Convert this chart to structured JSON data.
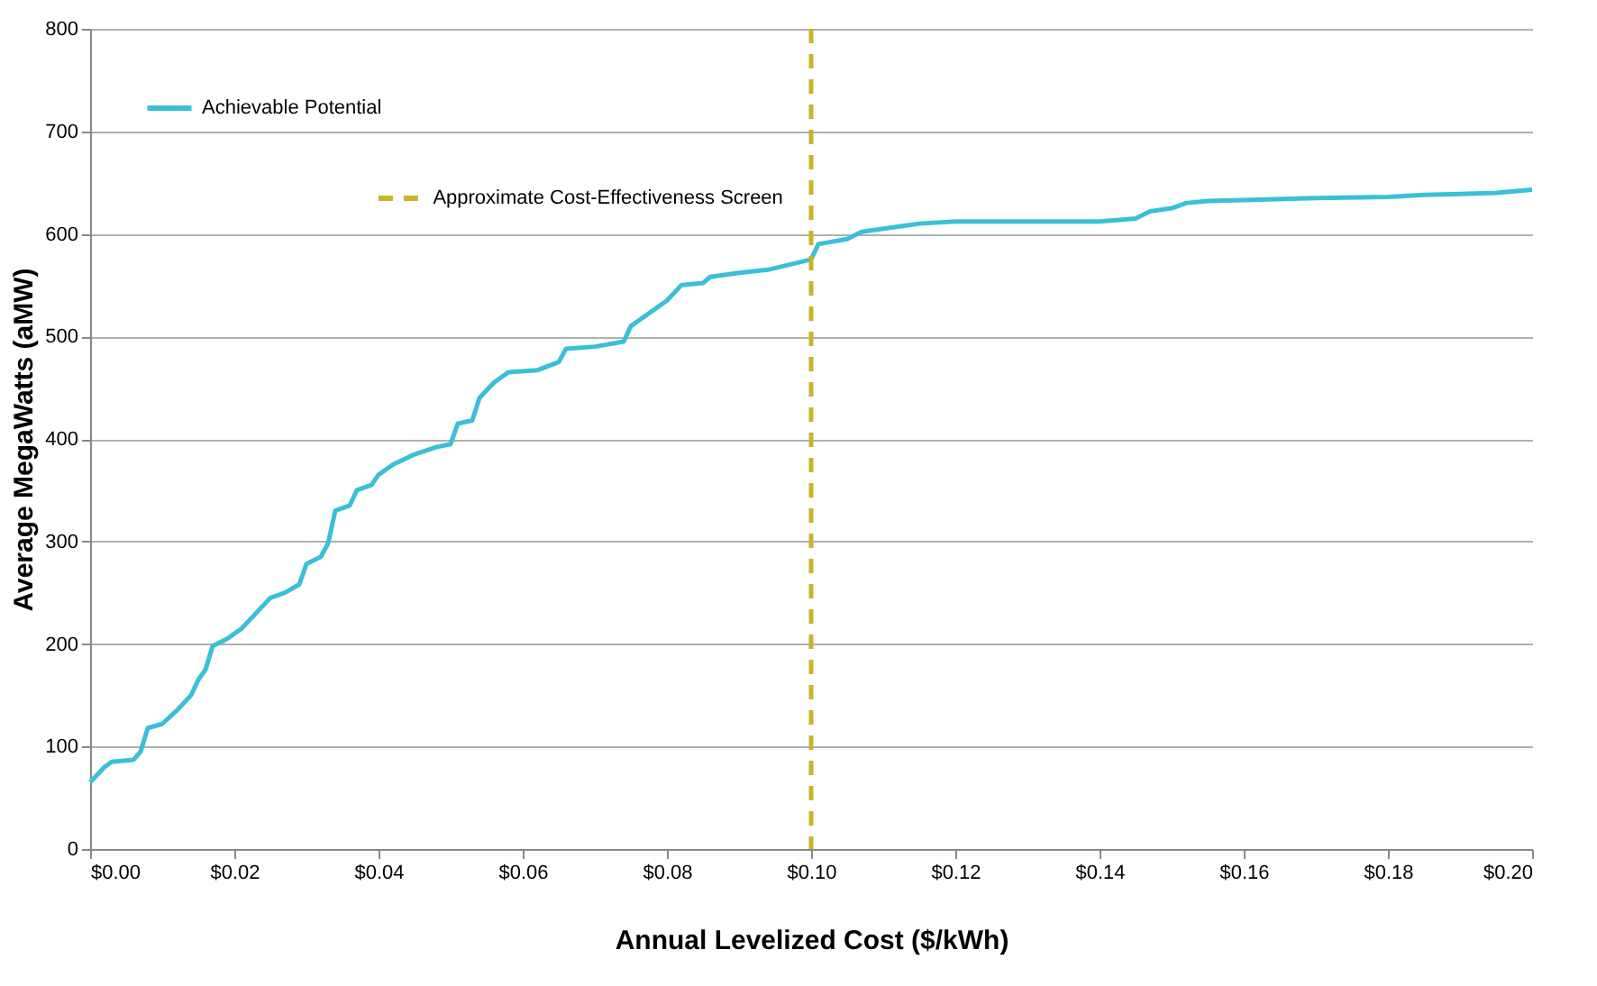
{
  "chart_data": {
    "type": "line",
    "xlabel": "Annual Levelized Cost ($/kWh)",
    "ylabel": "Average MegaWatts (aMW)",
    "xlim": [
      0,
      0.2
    ],
    "ylim": [
      0,
      800
    ],
    "xticks": [
      {
        "value": 0,
        "label": "$0.00"
      },
      {
        "value": 0.02,
        "label": "$0.02"
      },
      {
        "value": 0.04,
        "label": "$0.04"
      },
      {
        "value": 0.06,
        "label": "$0.06"
      },
      {
        "value": 0.08,
        "label": "$0.08"
      },
      {
        "value": 0.1,
        "label": "$0.10"
      },
      {
        "value": 0.12,
        "label": "$0.12"
      },
      {
        "value": 0.14,
        "label": "$0.14"
      },
      {
        "value": 0.16,
        "label": "$0.16"
      },
      {
        "value": 0.18,
        "label": "$0.18"
      },
      {
        "value": 0.2,
        "label": "$0.20"
      }
    ],
    "yticks": [
      0,
      100,
      200,
      300,
      400,
      500,
      600,
      700,
      800
    ],
    "grid": "y",
    "legend": "top left",
    "series": [
      {
        "name": "Achievable Potential",
        "color": "#3bbfd8",
        "x": [
          0,
          0.002,
          0.003,
          0.006,
          0.007,
          0.008,
          0.01,
          0.012,
          0.014,
          0.015,
          0.016,
          0.017,
          0.019,
          0.021,
          0.023,
          0.025,
          0.027,
          0.029,
          0.03,
          0.032,
          0.033,
          0.034,
          0.036,
          0.037,
          0.039,
          0.04,
          0.042,
          0.045,
          0.048,
          0.05,
          0.051,
          0.053,
          0.054,
          0.056,
          0.058,
          0.062,
          0.065,
          0.066,
          0.07,
          0.074,
          0.075,
          0.077,
          0.08,
          0.082,
          0.085,
          0.086,
          0.09,
          0.094,
          0.097,
          0.1,
          0.101,
          0.105,
          0.107,
          0.112,
          0.115,
          0.12,
          0.13,
          0.14,
          0.145,
          0.147,
          0.15,
          0.152,
          0.155,
          0.16,
          0.17,
          0.18,
          0.185,
          0.19,
          0.195,
          0.2
        ],
        "values": [
          65,
          80,
          85,
          87,
          95,
          118,
          122,
          135,
          150,
          165,
          175,
          198,
          205,
          215,
          230,
          245,
          250,
          258,
          278,
          285,
          298,
          330,
          335,
          350,
          355,
          365,
          375,
          385,
          392,
          395,
          415,
          418,
          440,
          455,
          465,
          467,
          475,
          488,
          490,
          495,
          510,
          520,
          535,
          550,
          552,
          558,
          562,
          565,
          570,
          575,
          590,
          595,
          602,
          607,
          610,
          612,
          612,
          612,
          615,
          622,
          625,
          630,
          632,
          633,
          635,
          636,
          638,
          639,
          640,
          643
        ]
      }
    ],
    "ref_lines": [
      {
        "axis": "x",
        "value": 0.1,
        "label": "Approximate Cost-Effectiveness Screen",
        "color": "#c8b42a",
        "line_style": "dashed"
      }
    ]
  }
}
